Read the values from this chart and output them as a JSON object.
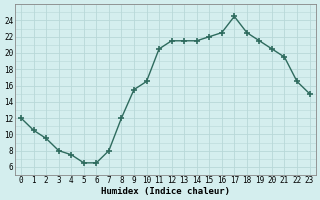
{
  "x": [
    0,
    1,
    2,
    3,
    4,
    5,
    6,
    7,
    8,
    9,
    10,
    11,
    12,
    13,
    14,
    15,
    16,
    17,
    18,
    19,
    20,
    21,
    22,
    23
  ],
  "y": [
    12,
    10.5,
    9.5,
    8,
    7.5,
    6.5,
    6.5,
    8,
    12,
    15.5,
    16.5,
    20.5,
    21.5,
    21.5,
    21.5,
    22,
    22.5,
    24.5,
    22.5,
    21.5,
    20.5,
    19.5,
    16.5,
    15
  ],
  "line_color": "#2e6b5e",
  "marker": "+",
  "markersize": 4,
  "linewidth": 1.0,
  "bg_color": "#d4eeee",
  "grid_color": "#b8d8d8",
  "xlabel": "Humidex (Indice chaleur)",
  "ylim": [
    5,
    26
  ],
  "yticks": [
    6,
    8,
    10,
    12,
    14,
    16,
    18,
    20,
    22,
    24
  ],
  "xticks": [
    0,
    1,
    2,
    3,
    4,
    5,
    6,
    7,
    8,
    9,
    10,
    11,
    12,
    13,
    14,
    15,
    16,
    17,
    18,
    19,
    20,
    21,
    22,
    23
  ],
  "xlabel_fontsize": 6.5,
  "tick_fontsize": 5.5
}
